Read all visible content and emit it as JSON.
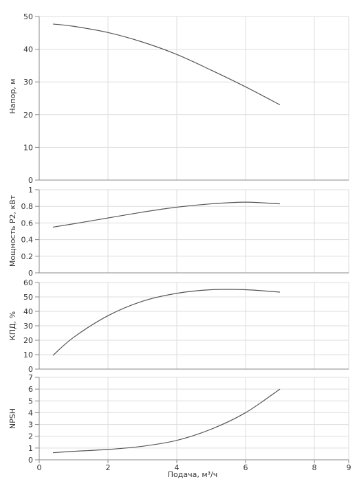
{
  "x_axis": {
    "label": "Подача, м³/ч",
    "range": [
      0,
      9
    ],
    "ticks": [
      0,
      2,
      4,
      6,
      8,
      9
    ]
  },
  "colors": {
    "curve": "#555555",
    "grid": "#dddddd",
    "axis": "#888888",
    "text": "#333333"
  },
  "chart_data": [
    {
      "type": "line",
      "id": "head",
      "xlabel": "Подача, м³/ч",
      "ylabel": "Напор, м",
      "ylim": [
        0,
        50
      ],
      "yticks": [
        0,
        10,
        20,
        30,
        40,
        50
      ],
      "ytick_labels": [
        "0",
        "10",
        "20",
        "30",
        "40",
        "50"
      ],
      "grid": true,
      "x": [
        0.4,
        1.0,
        2.0,
        3.0,
        4.0,
        5.0,
        6.0,
        7.0
      ],
      "y": [
        47.7,
        47.0,
        45.1,
        42.2,
        38.4,
        33.6,
        28.5,
        23.0
      ]
    },
    {
      "type": "line",
      "id": "power",
      "xlabel": "Подача, м³/ч",
      "ylabel": "Мощность Р2, кВт",
      "ylim": [
        0,
        1
      ],
      "yticks": [
        0,
        0.2,
        0.4,
        0.6,
        0.8,
        1
      ],
      "ytick_labels": [
        "0",
        "0.2",
        "0.4",
        "0.6",
        "0.8",
        "1"
      ],
      "grid": true,
      "x": [
        0.4,
        1.0,
        2.0,
        3.0,
        4.0,
        5.0,
        6.0,
        7.0
      ],
      "y": [
        0.55,
        0.59,
        0.66,
        0.73,
        0.79,
        0.83,
        0.85,
        0.83
      ]
    },
    {
      "type": "line",
      "id": "efficiency",
      "xlabel": "Подача, м³/ч",
      "ylabel": "КПД, %",
      "ylim": [
        0,
        60
      ],
      "yticks": [
        0,
        10,
        20,
        30,
        40,
        50,
        60
      ],
      "ytick_labels": [
        "0",
        "10",
        "20",
        "30",
        "40",
        "50",
        "60"
      ],
      "grid": true,
      "x": [
        0.4,
        1.0,
        2.0,
        3.0,
        4.0,
        5.0,
        6.0,
        7.0
      ],
      "y": [
        9.5,
        22.0,
        37.0,
        47.0,
        52.5,
        55.0,
        55.0,
        53.3
      ]
    },
    {
      "type": "line",
      "id": "npsh",
      "xlabel": "Подача, м³/ч",
      "ylabel": "NPSH",
      "ylim": [
        0,
        7
      ],
      "yticks": [
        0,
        1,
        2,
        3,
        4,
        5,
        6,
        7
      ],
      "ytick_labels": [
        "0",
        "1",
        "2",
        "3",
        "4",
        "5",
        "6",
        "7"
      ],
      "grid": true,
      "x": [
        0.4,
        1.0,
        2.0,
        3.0,
        4.0,
        5.0,
        6.0,
        7.0
      ],
      "y": [
        0.6,
        0.72,
        0.88,
        1.15,
        1.65,
        2.6,
        4.0,
        6.0
      ]
    }
  ]
}
